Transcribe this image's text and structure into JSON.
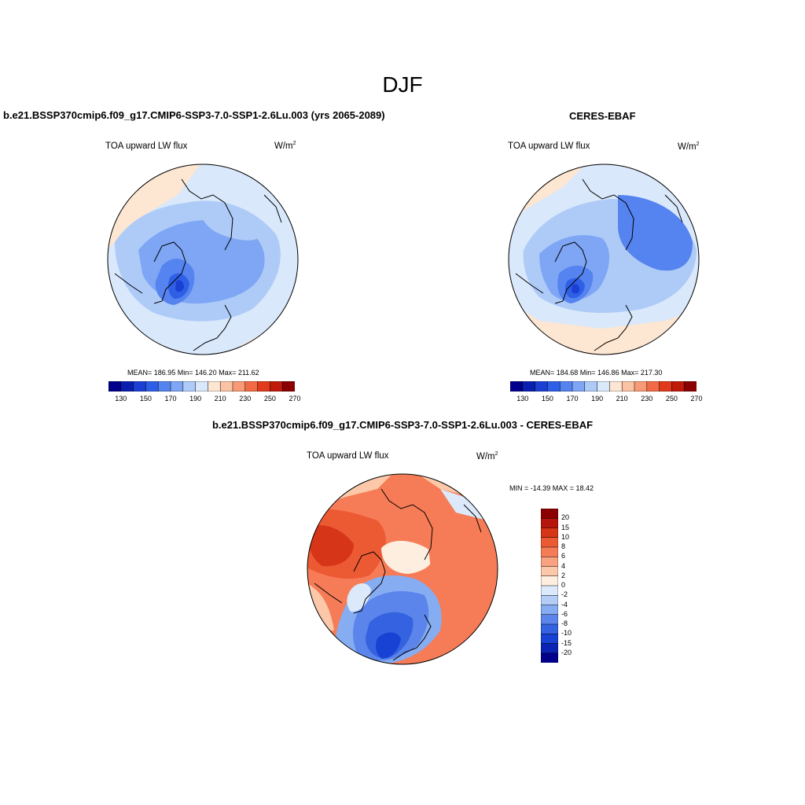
{
  "main_title": "DJF",
  "panels": [
    {
      "title": "b.e21.BSSP370cmip6.f09_g17.CMIP6-SSP3-7.0-SSP1-2.6Lu.003 (yrs 2065-2089)",
      "variable": "TOA upward LW flux",
      "units_base": "W/m",
      "units_exp": "2",
      "stats": "MEAN= 186.95  Min= 146.20  Max= 211.62"
    },
    {
      "title": "CERES-EBAF",
      "variable": "TOA upward LW flux",
      "units_base": "W/m",
      "units_exp": "2",
      "stats": "MEAN= 184.68  Min= 146.86  Max= 217.30"
    },
    {
      "title": "b.e21.BSSP370cmip6.f09_g17.CMIP6-SSP3-7.0-SSP1-2.6Lu.003 - CERES-EBAF",
      "variable": "TOA upward LW flux",
      "units_base": "W/m",
      "units_exp": "2",
      "stats": "MIN = -14.39 MAX =  18.42"
    }
  ],
  "colorbar_abs": {
    "colors": [
      "#00008b",
      "#0a1fb0",
      "#1a3fd2",
      "#2e5fe6",
      "#5583ef",
      "#7ea6f5",
      "#aecbf8",
      "#d9e8fb",
      "#fde6d2",
      "#fbc3a4",
      "#f89a76",
      "#f26a45",
      "#e13a1c",
      "#c01a0a",
      "#8b0000"
    ],
    "ticks": [
      "130",
      "150",
      "170",
      "190",
      "210",
      "230",
      "250",
      "270"
    ]
  },
  "colorbar_diff": {
    "colors": [
      "#8b0000",
      "#b5150a",
      "#d63518",
      "#ec5a34",
      "#f67c57",
      "#f9a27f",
      "#fcc8a9",
      "#fdeee0",
      "#dce9fb",
      "#b3cdf7",
      "#86acf2",
      "#5b85ea",
      "#3562e0",
      "#1742d4",
      "#0a23b5",
      "#00008b"
    ],
    "ticks": [
      "20",
      "15",
      "10",
      "8",
      "6",
      "4",
      "2",
      "0",
      "-2",
      "-4",
      "-6",
      "-8",
      "-10",
      "-15",
      "-20"
    ]
  }
}
